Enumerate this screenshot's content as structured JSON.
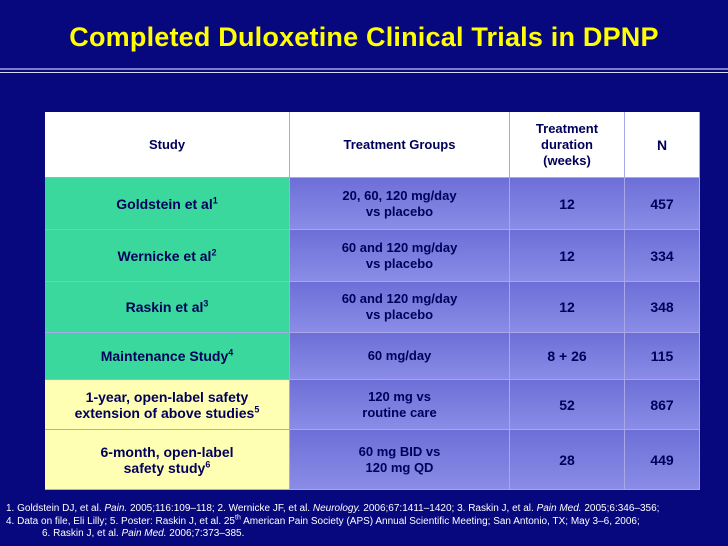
{
  "title": "Completed Duloxetine Clinical Trials in DPNP",
  "table": {
    "headers": {
      "study": [
        "Study"
      ],
      "groups": [
        "Treatment Groups"
      ],
      "duration": [
        "Treatment",
        "duration",
        "(weeks)"
      ],
      "n": [
        "N"
      ]
    },
    "rows": [
      {
        "study": {
          "lines": [
            "Goldstein et al"
          ],
          "sup": "1"
        },
        "groups": [
          "20, 60, 120 mg/day",
          "vs placebo"
        ],
        "duration": "12",
        "n": "457",
        "color": "#3ad89c"
      },
      {
        "study": {
          "lines": [
            "Wernicke et al"
          ],
          "sup": "2"
        },
        "groups": [
          "60 and 120 mg/day",
          "vs placebo"
        ],
        "duration": "12",
        "n": "334",
        "color": "#3ad89c"
      },
      {
        "study": {
          "lines": [
            "Raskin et al"
          ],
          "sup": "3"
        },
        "groups": [
          "60 and 120 mg/day",
          "vs placebo"
        ],
        "duration": "12",
        "n": "348",
        "color": "#3ad89c"
      },
      {
        "study": {
          "lines": [
            "Maintenance Study"
          ],
          "sup": "4"
        },
        "groups": [
          "60 mg/day"
        ],
        "duration": "8 + 26",
        "n": "115",
        "color": "#3ad89c"
      },
      {
        "study": {
          "lines": [
            "1-year, open-label safety",
            "extension of above studies"
          ],
          "sup": "5"
        },
        "groups": [
          "120 mg vs",
          "routine care"
        ],
        "duration": "52",
        "n": "867",
        "color": "#ffffb4"
      },
      {
        "study": {
          "lines": [
            "6-month, open-label",
            "safety study"
          ],
          "sup": "6"
        },
        "groups": [
          "60 mg BID vs",
          "120 mg QD"
        ],
        "duration": "28",
        "n": "449",
        "color": "#ffffb4"
      }
    ]
  },
  "footnotes": [
    [
      {
        "text": "1. Goldstein DJ, et al. "
      },
      {
        "text": "Pain.",
        "style": "italic"
      },
      {
        "text": " 2005;116:109–118; 2. Wernicke JF, et al. "
      },
      {
        "text": "Neurology.",
        "style": "italic"
      },
      {
        "text": " 2006;67:1411–1420; 3. Raskin J, et al. "
      },
      {
        "text": "Pain Med.",
        "style": "italic"
      },
      {
        "text": " 2005;6:346–356;"
      }
    ],
    [
      {
        "text": "4. Data on file, Eli Lilly; 5. Poster: Raskin J, et al. 25"
      },
      {
        "text": "th",
        "style": "sup"
      },
      {
        "text": " American Pain Society (APS) Annual Scientific Meeting; San Antonio, TX; May 3–6, 2006;"
      }
    ],
    [
      {
        "text": "6. Raskin J, et al. "
      },
      {
        "text": "Pain Med.",
        "style": "italic"
      },
      {
        "text": " 2006;7:373–385."
      }
    ]
  ]
}
